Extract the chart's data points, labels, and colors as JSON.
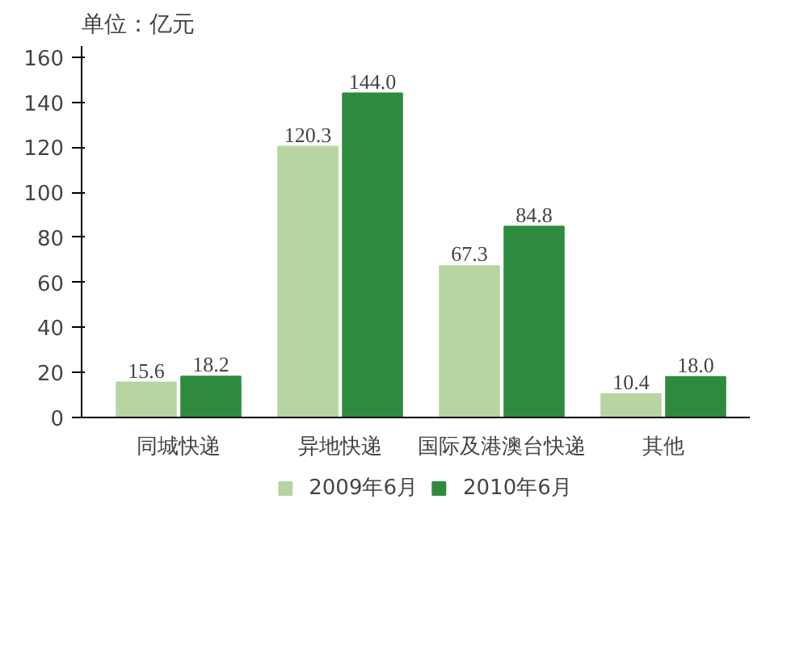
{
  "chart_data": {
    "type": "bar",
    "ylabel": "单位：亿元",
    "categories": [
      "同城快递",
      "异地快递",
      "国际及港澳台快递",
      "其他"
    ],
    "series": [
      {
        "name": "2009年6月",
        "color": "#b7d5a0",
        "values": [
          15.6,
          120.3,
          67.3,
          10.4
        ],
        "value_labels": [
          "15.6",
          "120.3",
          "67.3",
          "10.4"
        ]
      },
      {
        "name": "2010年6月",
        "color": "#2e8b3e",
        "values": [
          18.2,
          144.0,
          84.8,
          18.0
        ],
        "value_labels": [
          "18.2",
          "144.0",
          "84.8",
          "18.0"
        ]
      }
    ],
    "ylim": [
      0,
      165
    ],
    "yticks": [
      0,
      20,
      40,
      60,
      80,
      100,
      120,
      140,
      160
    ],
    "grid": false,
    "legend": "bottom"
  }
}
